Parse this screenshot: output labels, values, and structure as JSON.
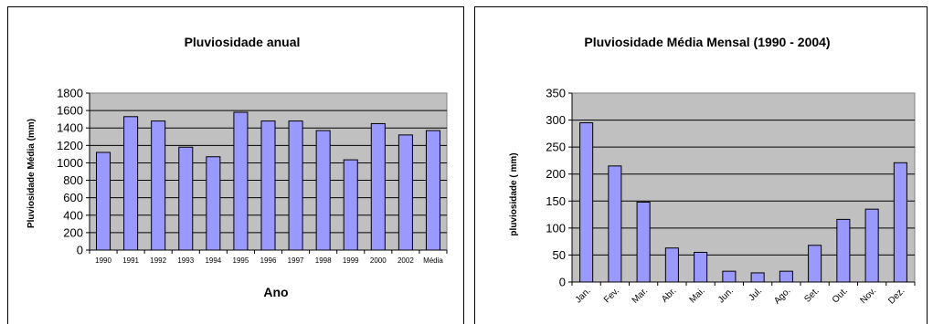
{
  "chart_data": [
    {
      "type": "bar",
      "title": "Pluviosidade anual",
      "xlabel": "Ano",
      "ylabel": "Pluviosidade Média (mm)",
      "ylim": [
        0,
        1800
      ],
      "yticks": [
        0,
        200,
        400,
        600,
        800,
        1000,
        1200,
        1400,
        1600,
        1800
      ],
      "grid": true,
      "legend": "none",
      "categories": [
        "1990",
        "1991",
        "1992",
        "1993",
        "1994",
        "1995",
        "1996",
        "1997",
        "1998",
        "1999",
        "2000",
        "2002",
        "Média"
      ],
      "values": [
        1120,
        1530,
        1480,
        1180,
        1070,
        1580,
        1480,
        1480,
        1370,
        1035,
        1450,
        1320,
        1370
      ],
      "colors": {
        "bar": "#9999ff",
        "plot_bg": "#c0c0c0",
        "grid": "#000000"
      }
    },
    {
      "type": "bar",
      "title": "Pluviosidade Média Mensal (1990 - 2004)",
      "xlabel": "",
      "ylabel": "pluviosidade ( mm)",
      "ylim": [
        0,
        350
      ],
      "yticks": [
        0,
        50,
        100,
        150,
        200,
        250,
        300,
        350
      ],
      "grid": true,
      "legend": "none",
      "categories": [
        "Jan.",
        "Fev.",
        "Mar.",
        "Abr.",
        "Mai.",
        "Jun.",
        "Jul.",
        "Ago.",
        "Set.",
        "Out.",
        "Nov.",
        "Dez."
      ],
      "values": [
        295,
        215,
        148,
        63,
        55,
        20,
        17,
        20,
        68,
        116,
        135,
        221
      ],
      "colors": {
        "bar": "#9999ff",
        "plot_bg": "#c0c0c0",
        "grid": "#000000"
      }
    }
  ]
}
